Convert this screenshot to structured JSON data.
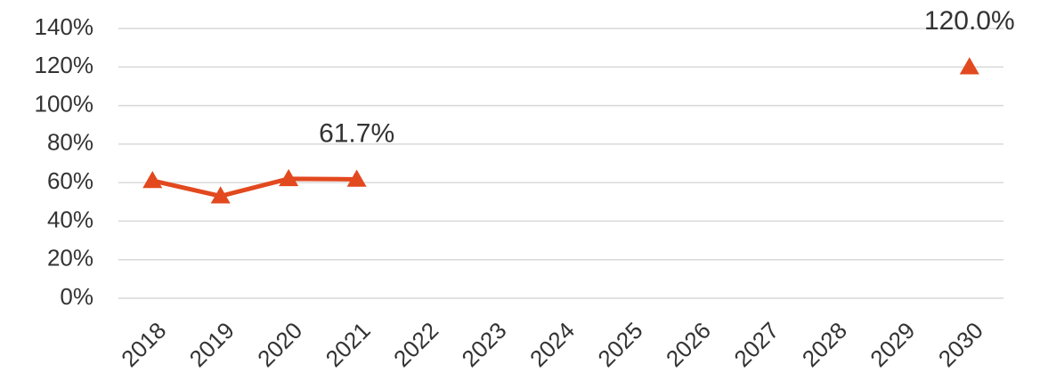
{
  "chart_data": {
    "type": "line",
    "categories": [
      "2018",
      "2019",
      "2020",
      "2021",
      "2022",
      "2023",
      "2024",
      "2025",
      "2026",
      "2027",
      "2028",
      "2029",
      "2030"
    ],
    "series": [
      {
        "color": "#e2491f",
        "values": [
          61,
          53,
          62,
          61.7,
          null,
          null,
          null,
          null,
          null,
          null,
          null,
          null,
          120
        ],
        "value_labels": [
          null,
          null,
          null,
          "61.7%",
          null,
          null,
          null,
          null,
          null,
          null,
          null,
          null,
          "120.0%"
        ]
      }
    ],
    "ylim": [
      0,
      140
    ],
    "yticks": [
      {
        "value": 0,
        "label": "0%"
      },
      {
        "value": 20,
        "label": "20%"
      },
      {
        "value": 40,
        "label": "40%"
      },
      {
        "value": 60,
        "label": "60%"
      },
      {
        "value": 80,
        "label": "80%"
      },
      {
        "value": 100,
        "label": "100%"
      },
      {
        "value": 120,
        "label": "120%"
      },
      {
        "value": 140,
        "label": "140%"
      }
    ],
    "grid": true,
    "marker": "triangle"
  }
}
